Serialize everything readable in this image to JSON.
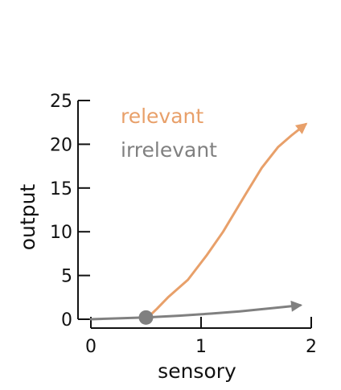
{
  "chart_data": {
    "type": "line",
    "xlabel": "sensory",
    "ylabel": "output",
    "xlim": [
      0,
      2
    ],
    "ylim": [
      0,
      25
    ],
    "x_ticks": [
      0,
      1,
      2
    ],
    "y_ticks": [
      0,
      5,
      10,
      15,
      20,
      25
    ],
    "legend_placement": "top-left",
    "grid": false,
    "series": [
      {
        "name": "relevant",
        "color": "#e8a06a",
        "arrow_end": true,
        "x": [
          0.5,
          0.6,
          0.7,
          0.88,
          1.05,
          1.2,
          1.4,
          1.55,
          1.7,
          1.82,
          1.95
        ],
        "y": [
          0.0,
          1.2,
          2.5,
          4.5,
          7.3,
          10.0,
          14.2,
          17.3,
          19.7,
          21.0,
          22.3
        ]
      },
      {
        "name": "irrelevant",
        "color": "#808080",
        "arrow_end": true,
        "x": [
          0.0,
          0.25,
          0.5,
          0.8,
          1.1,
          1.35,
          1.55,
          1.75,
          1.9
        ],
        "y": [
          0.0,
          0.1,
          0.2,
          0.4,
          0.65,
          0.9,
          1.15,
          1.4,
          1.6
        ]
      }
    ],
    "marker": {
      "x": 0.5,
      "y": 0.2,
      "color": "#808080"
    }
  }
}
